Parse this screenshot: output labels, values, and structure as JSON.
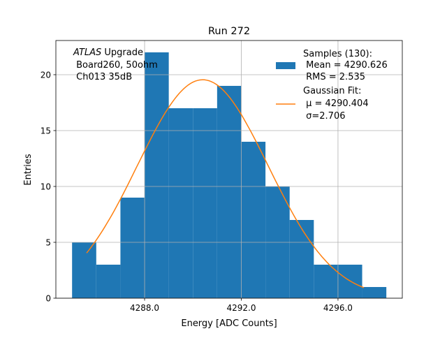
{
  "chart_data": {
    "type": "bar",
    "title": "Run 272",
    "xlabel": "Energy [ADC Counts]",
    "ylabel": "Entries",
    "xlim": [
      4284.33,
      4298.66
    ],
    "ylim": [
      0,
      23.06
    ],
    "xticks": [
      4288,
      4292,
      4296
    ],
    "xtick_labels": [
      "4288.0",
      "4292.0",
      "4296.0"
    ],
    "yticks": [
      0,
      5,
      10,
      15,
      20
    ],
    "ytick_labels": [
      "0",
      "5",
      "10",
      "15",
      "20"
    ],
    "grid": true,
    "histogram": {
      "name": "Samples",
      "bin_edges": [
        4285,
        4286,
        4287,
        4288,
        4289,
        4290,
        4291,
        4292,
        4293,
        4294,
        4295,
        4296,
        4297,
        4298
      ],
      "counts": [
        5,
        3,
        9,
        22,
        17,
        17,
        19,
        14,
        10,
        7,
        3,
        3,
        1
      ],
      "color": "#1f77b4"
    },
    "fit": {
      "name": "Gaussian Fit",
      "mu": 4290.404,
      "sigma": 2.706,
      "amplitude": 19.55,
      "x_range": [
        4285.6,
        4297.07
      ],
      "color": "#ff7f0e"
    },
    "legend": {
      "placement": "top-right",
      "entries": [
        {
          "lines": [
            "Samples (130):",
            " Mean = 4290.626",
            " RMS = 2.535"
          ]
        },
        {
          "lines": [
            "Gaussian Fit:",
            " μ = 4290.404",
            " σ=2.706"
          ]
        }
      ]
    },
    "annotation": {
      "italic": "ATLAS",
      "rest": " Upgrade",
      "lines": [
        " Board260, 50ohm",
        " Ch013 35dB"
      ]
    }
  }
}
